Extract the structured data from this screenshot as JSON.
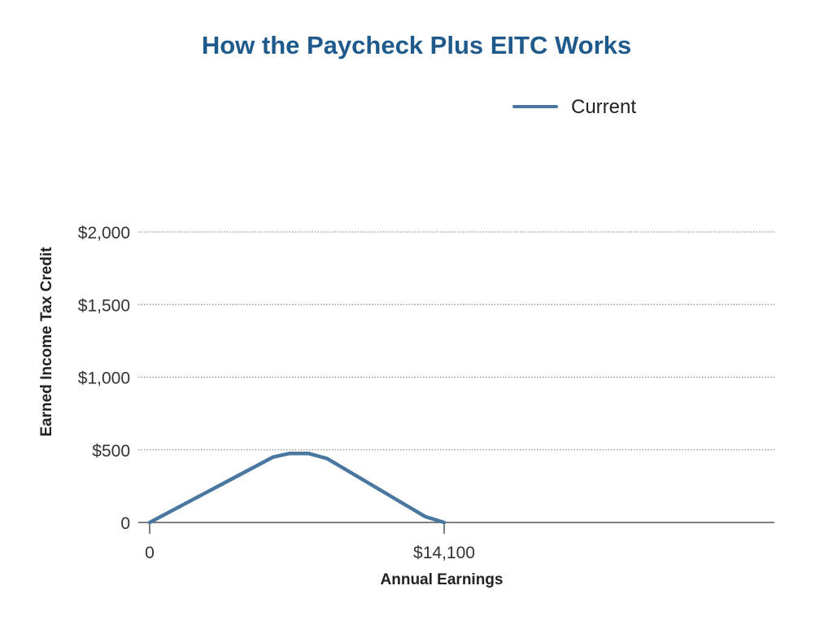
{
  "chart_data": {
    "type": "line",
    "title": "How the Paycheck Plus EITC Works",
    "xlabel": "Annual Earnings",
    "ylabel": "Earned Income Tax Credit",
    "xlim": [
      0,
      30000
    ],
    "ylim": [
      0,
      2000
    ],
    "x_ticks": [
      {
        "value": 0,
        "label": "0"
      },
      {
        "value": 14100,
        "label": "$14,100"
      }
    ],
    "y_ticks": [
      {
        "value": 0,
        "label": "0"
      },
      {
        "value": 500,
        "label": "$500"
      },
      {
        "value": 1000,
        "label": "$1,000"
      },
      {
        "value": 1500,
        "label": "$1,500"
      },
      {
        "value": 2000,
        "label": "$2,000"
      }
    ],
    "grid": "horizontal-dotted",
    "legend_position": "top-right",
    "series": [
      {
        "name": "Current",
        "color": "#4a77a0",
        "points": [
          {
            "x": 0,
            "y": 0
          },
          {
            "x": 5900,
            "y": 450
          },
          {
            "x": 6700,
            "y": 475
          },
          {
            "x": 7600,
            "y": 475
          },
          {
            "x": 8500,
            "y": 440
          },
          {
            "x": 13200,
            "y": 40
          },
          {
            "x": 14100,
            "y": 0
          }
        ]
      }
    ]
  }
}
